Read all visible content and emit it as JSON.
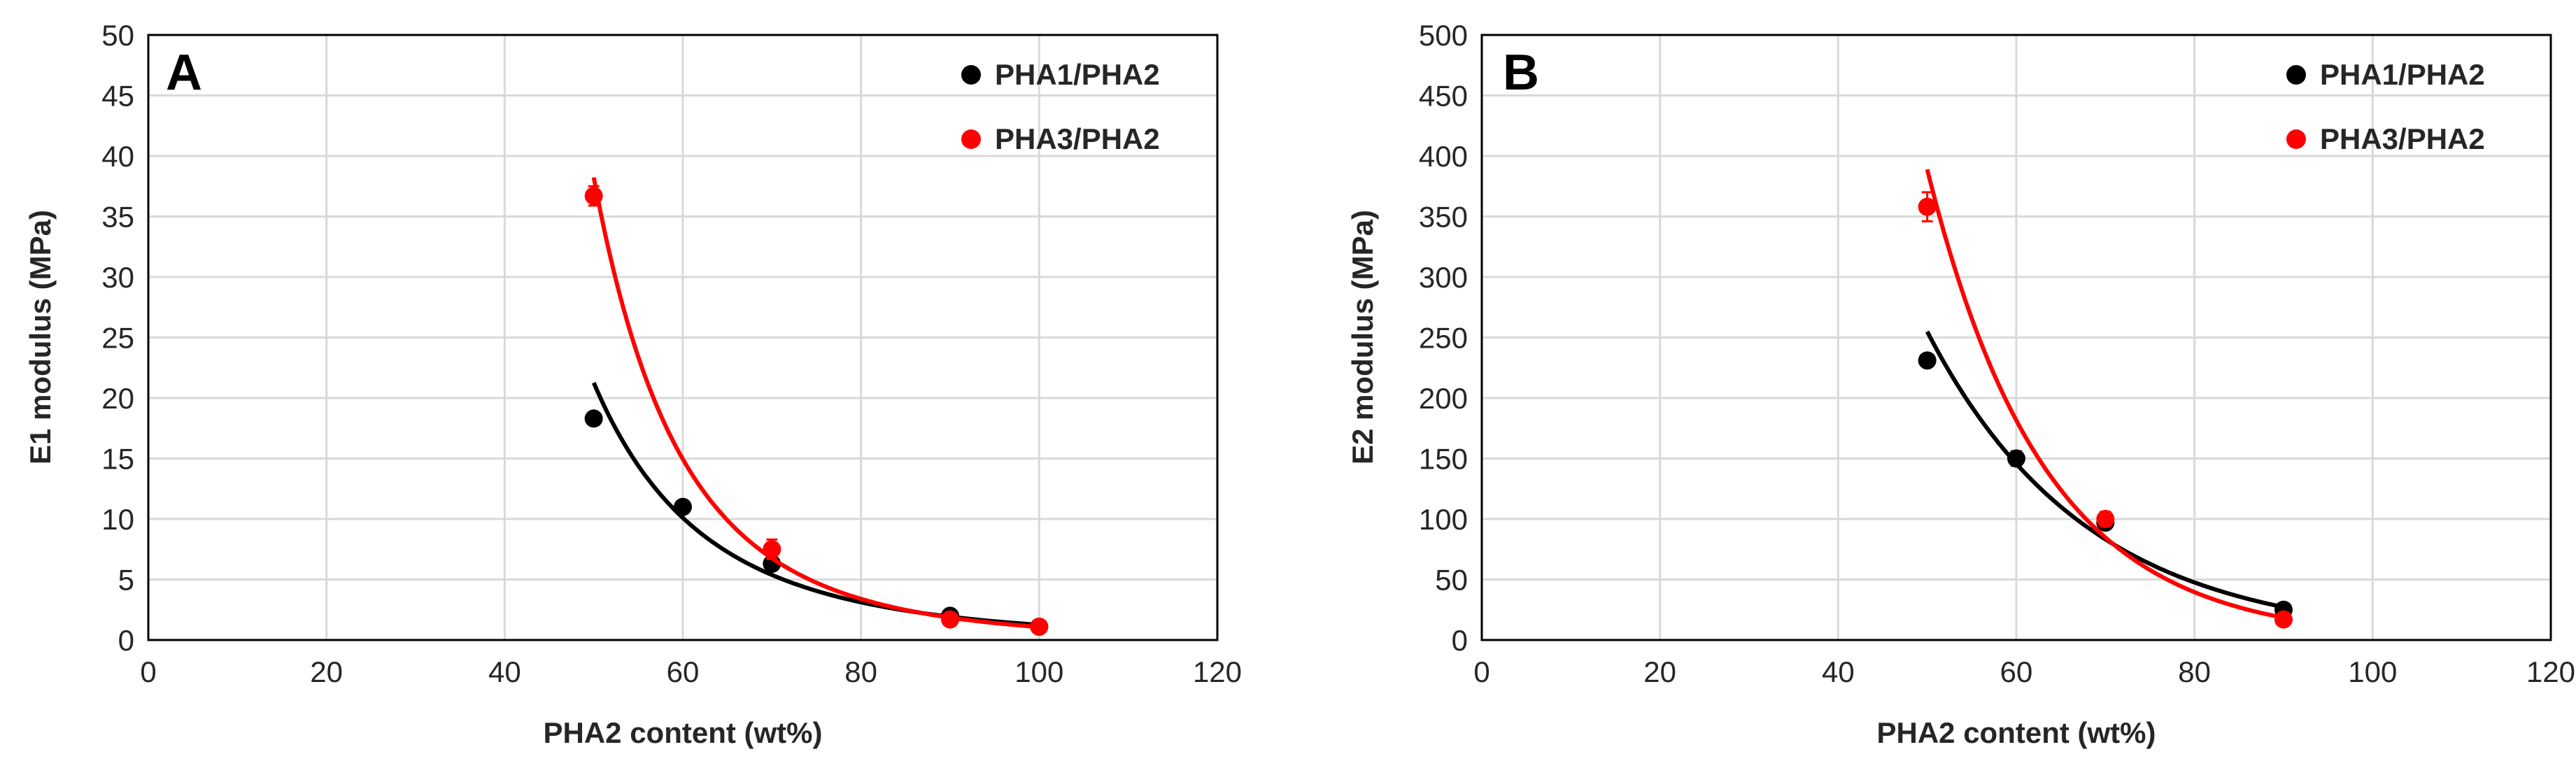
{
  "chart_data": [
    {
      "type": "scatter",
      "panel_label": "A",
      "xlabel": "PHA2 content (wt%)",
      "ylabel": "E1 modulus (MPa)",
      "xlim": [
        0,
        120
      ],
      "ylim": [
        0,
        50
      ],
      "x_ticks": [
        0,
        20,
        40,
        60,
        80,
        100,
        120
      ],
      "y_ticks": [
        0,
        5,
        10,
        15,
        20,
        25,
        30,
        35,
        40,
        45,
        50
      ],
      "grid": true,
      "legend_position": "top-right",
      "series": [
        {
          "name": "PHA1/PHA2",
          "color": "#000000",
          "x": [
            50,
            60,
            70,
            90,
            100
          ],
          "y": [
            18.3,
            11.0,
            6.3,
            2.0,
            1.1
          ],
          "error": [
            0.4,
            0.4,
            0.5,
            0.3,
            0.2
          ],
          "trendline": "power"
        },
        {
          "name": "PHA3/PHA2",
          "color": "#ff0000",
          "x": [
            50,
            70,
            90,
            100
          ],
          "y": [
            36.7,
            7.5,
            1.7,
            1.1
          ],
          "error": [
            0.8,
            0.8,
            0.3,
            0.2
          ],
          "trendline": "power"
        }
      ]
    },
    {
      "type": "scatter",
      "panel_label": "B",
      "xlabel": "PHA2 content (wt%)",
      "ylabel": "E2 modulus (MPa)",
      "xlim": [
        0,
        120
      ],
      "ylim": [
        0,
        500
      ],
      "x_ticks": [
        0,
        20,
        40,
        60,
        80,
        100,
        120
      ],
      "y_ticks": [
        0,
        50,
        100,
        150,
        200,
        250,
        300,
        350,
        400,
        450,
        500
      ],
      "grid": true,
      "legend_position": "top-right",
      "series": [
        {
          "name": "PHA1/PHA2",
          "color": "#000000",
          "x": [
            50,
            60,
            70,
            90
          ],
          "y": [
            231,
            150,
            97,
            25
          ],
          "error": [
            4,
            6,
            5,
            3
          ],
          "trendline": "exponential"
        },
        {
          "name": "PHA3/PHA2",
          "color": "#ff0000",
          "x": [
            50,
            70,
            90
          ],
          "y": [
            358,
            100,
            17
          ],
          "error": [
            12,
            6,
            3
          ],
          "trendline": "exponential"
        }
      ]
    }
  ]
}
